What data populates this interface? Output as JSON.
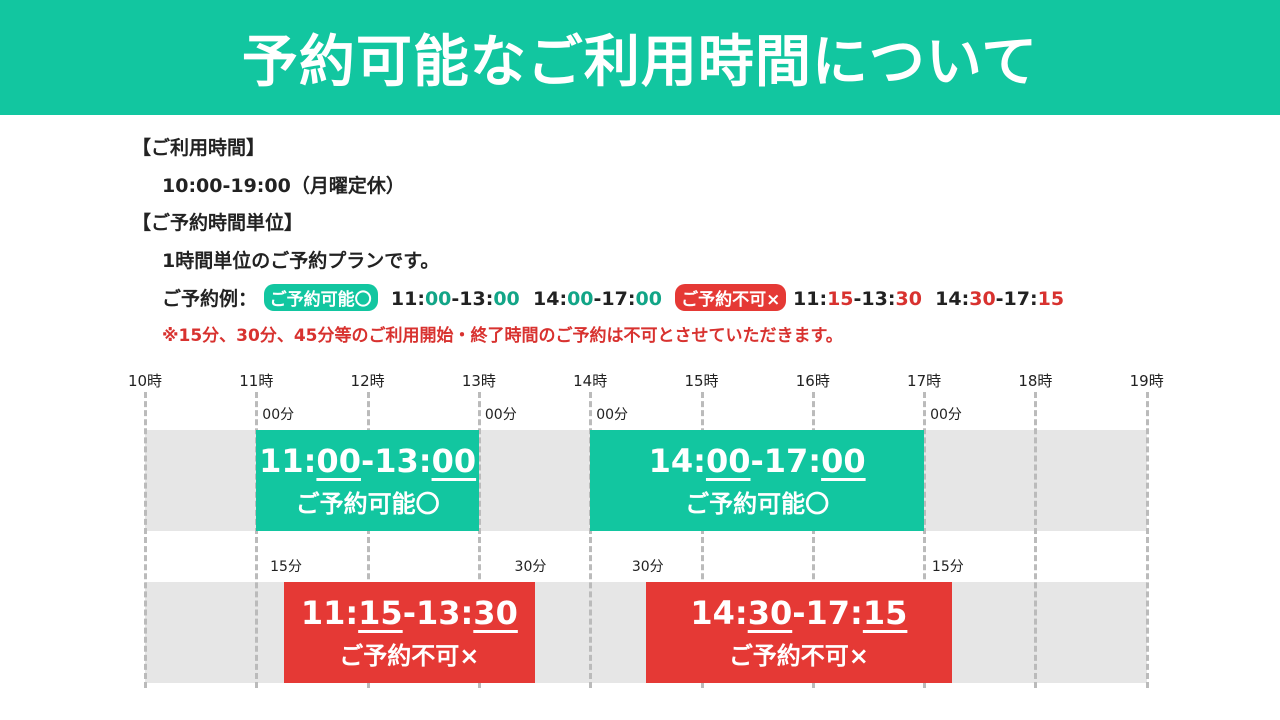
{
  "title": "予約可能なご利用時間について",
  "info": {
    "hours_heading": "【ご利用時間】",
    "hours_value": "10:00-19:00（月曜定休）",
    "unit_heading": "【ご予約時間単位】",
    "unit_value": "1時間単位のご予約プランです。",
    "example_label": "ご予約例：",
    "ok_badge": "ご予約可能〇",
    "ok_examples": [
      {
        "h1": "11:",
        "m1": "00",
        "h2": "-13:",
        "m2": "00"
      },
      {
        "h1": "14:",
        "m1": "00",
        "h2": "-17:",
        "m2": "00"
      }
    ],
    "ng_badge": "ご予約不可×",
    "ng_examples": [
      {
        "h1": "11:",
        "m1": "15",
        "h2": "-13:",
        "m2": "30"
      },
      {
        "h1": "14:",
        "m1": "30",
        "h2": "-17:",
        "m2": "15"
      }
    ],
    "note": "※15分、30分、45分等のご利用開始・終了時間のご予約は不可とさせていただきます。"
  },
  "colors": {
    "green": "#12c6a0",
    "red": "#e53935",
    "band": "#e6e6e6"
  },
  "timeline": {
    "hours": [
      "10時",
      "11時",
      "12時",
      "13時",
      "14時",
      "15時",
      "16時",
      "17時",
      "18時",
      "19時"
    ],
    "available": [
      {
        "start": 11,
        "end": 13,
        "start_label": "00分",
        "end_label": "00分",
        "h1": "11:",
        "m1": "00",
        "h2": "-13:",
        "m2": "00",
        "status": "ご予約可能〇"
      },
      {
        "start": 14,
        "end": 17,
        "start_label": "00分",
        "end_label": "00分",
        "h1": "14:",
        "m1": "00",
        "h2": "-17:",
        "m2": "00",
        "status": "ご予約可能〇"
      }
    ],
    "unavailable": [
      {
        "start": 11.25,
        "end": 13.5,
        "start_label": "15分",
        "end_label": "30分",
        "h1": "11:",
        "m1": "15",
        "h2": "-13:",
        "m2": "30",
        "status": "ご予約不可×"
      },
      {
        "start": 14.5,
        "end": 17.25,
        "start_label": "30分",
        "end_label": "15分",
        "h1": "14:",
        "m1": "30",
        "h2": "-17:",
        "m2": "15",
        "status": "ご予約不可×"
      }
    ]
  }
}
